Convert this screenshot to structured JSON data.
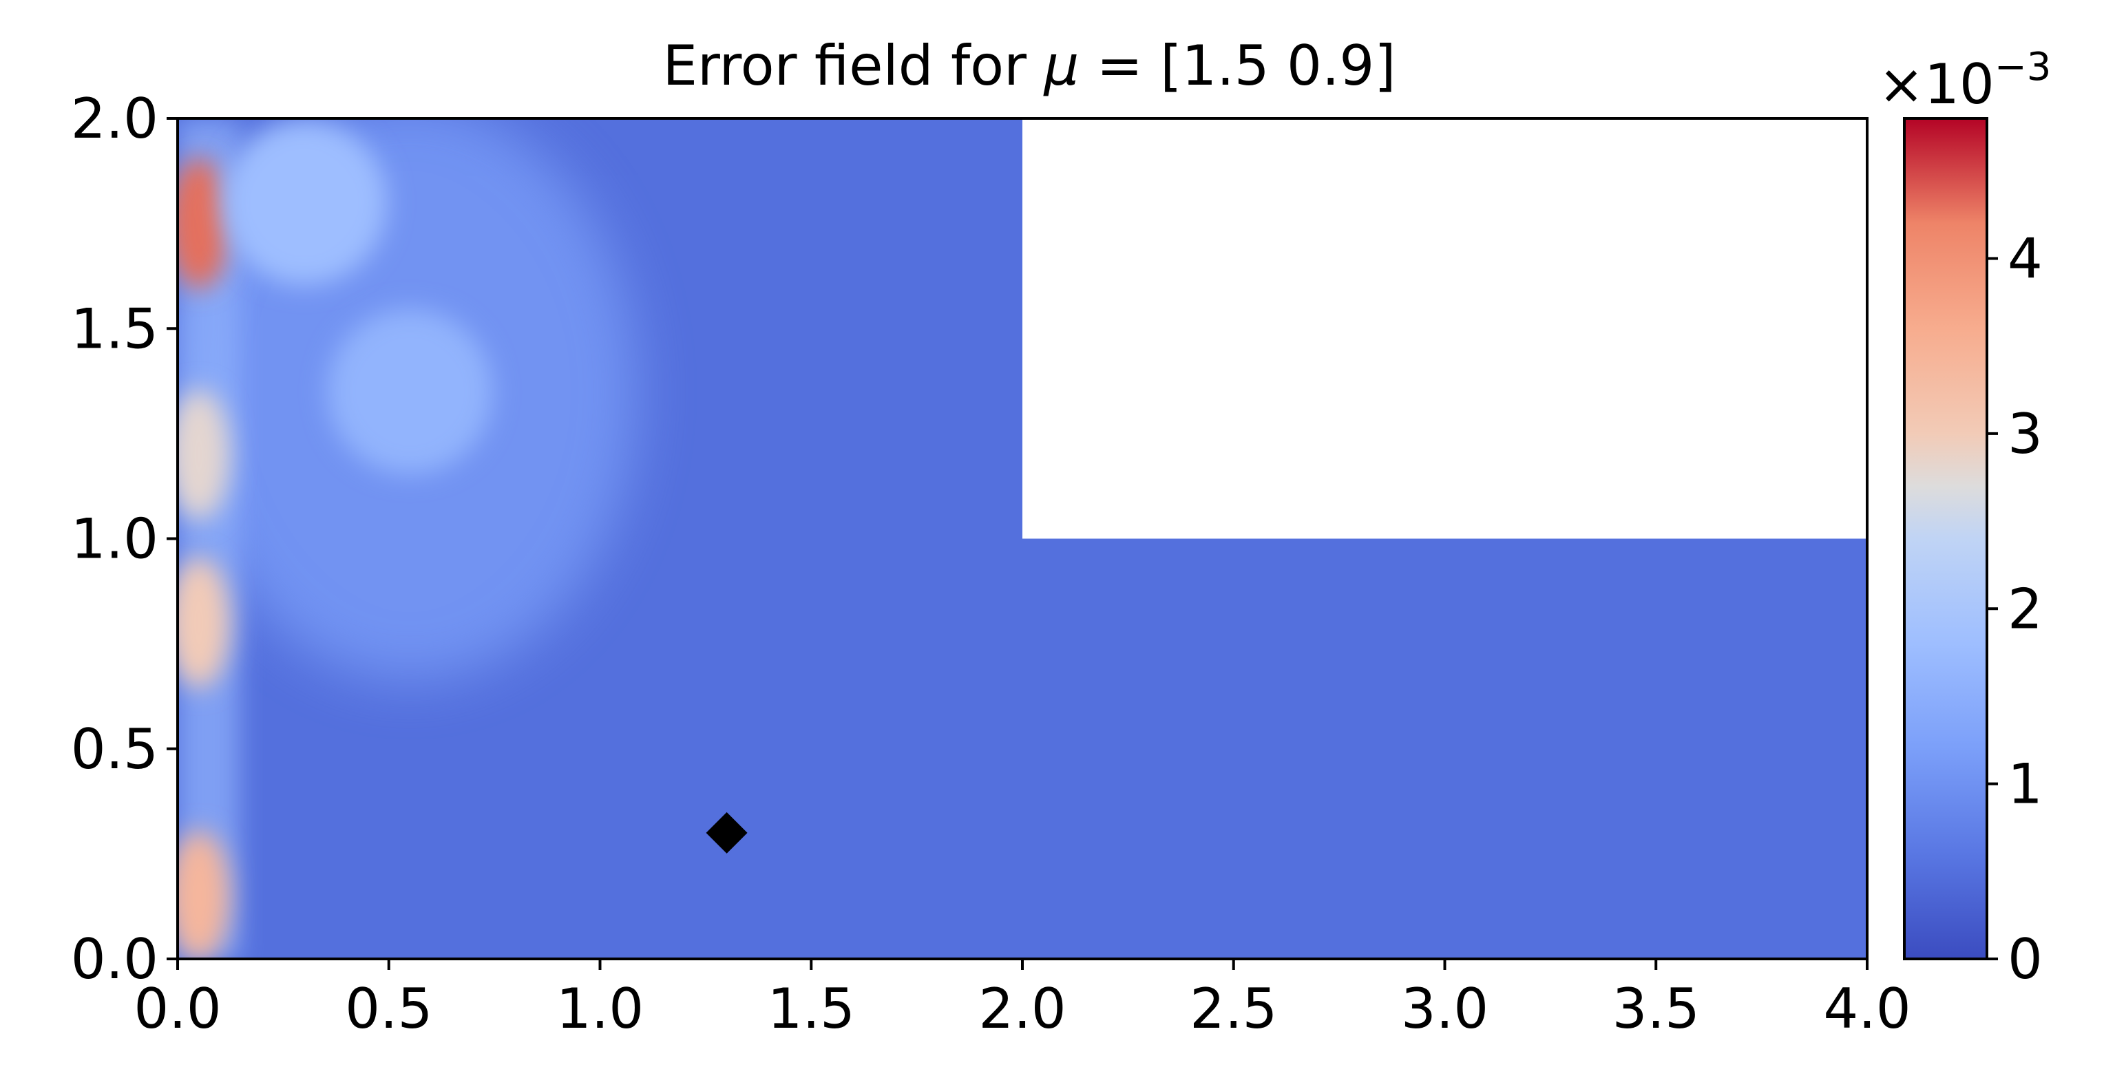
{
  "chart_data": {
    "type": "heatmap",
    "title_prefix": "Error field for ",
    "title_symbol": "μ",
    "title_suffix": " = [1.5 0.9]",
    "xlabel": "",
    "ylabel": "",
    "xlim": [
      0.0,
      4.0
    ],
    "ylim": [
      0.0,
      2.0
    ],
    "x_ticks": [
      "0.0",
      "0.5",
      "1.0",
      "1.5",
      "2.0",
      "2.5",
      "3.0",
      "3.5",
      "4.0"
    ],
    "y_ticks": [
      "0.0",
      "0.5",
      "1.0",
      "1.5",
      "2.0"
    ],
    "domain_shape": "L-shaped; region x in [2.0, 4.0], y in [1.0, 2.0] excluded (blank)",
    "excluded_region": {
      "x": [
        2.0,
        4.0
      ],
      "y": [
        1.0,
        2.0
      ]
    },
    "colormap": "coolwarm",
    "colorbar": {
      "range": [
        0,
        4.8
      ],
      "scale_label_base": "×10",
      "scale_label_exp": "−3",
      "ticks": [
        "0",
        "1",
        "2",
        "3",
        "4"
      ]
    },
    "marker": {
      "shape": "diamond",
      "color": "#000000",
      "x": 1.3,
      "y": 0.3
    },
    "hotspots": [
      {
        "x": 0.05,
        "y": 1.75,
        "value": 4.3
      },
      {
        "x": 0.05,
        "y": 0.15,
        "value": 3.4
      },
      {
        "x": 0.05,
        "y": 0.8,
        "value": 3.0
      },
      {
        "x": 0.05,
        "y": 1.2,
        "value": 2.8
      },
      {
        "x": 0.55,
        "y": 1.35,
        "value": 1.6
      },
      {
        "x": 0.3,
        "y": 1.8,
        "value": 1.8
      }
    ],
    "grid": false,
    "legend": "none"
  }
}
